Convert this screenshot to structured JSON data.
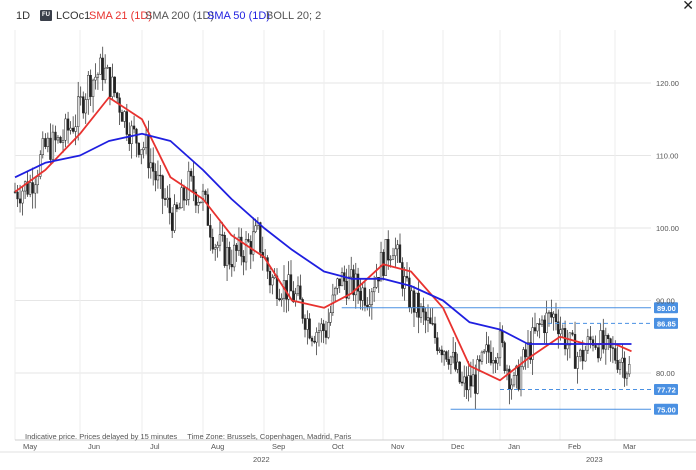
{
  "header": {
    "interval": "1D",
    "badge": "FU",
    "symbol": "LCOc1",
    "indicators": [
      {
        "label": "SMA 21 (1D)",
        "color": "#e8322f"
      },
      {
        "label": "SMA 200 (1D)",
        "color": "#555555"
      },
      {
        "label": "SMA 50 (1D)",
        "color": "#1f1fe0"
      },
      {
        "label": "BOLL 20; 2",
        "color": "#555555"
      }
    ],
    "close_icon": "close-icon"
  },
  "footer": {
    "price_note": "Indicative price. Prices delayed by 15 minutes",
    "timezone": "Time Zone: Brussels, Copenhagen, Madrid, Paris"
  },
  "chart_data": {
    "type": "candlestick",
    "symbol": "LCOc1",
    "ylim": [
      73,
      127
    ],
    "y_ticks": [
      "120.00",
      "110.00",
      "100.00",
      "90.00",
      "80.00"
    ],
    "x_ticks": [
      "May",
      "Jun",
      "Jul",
      "Aug",
      "Sep",
      "Oct",
      "Nov",
      "Dec",
      "Jan",
      "Feb",
      "Mar"
    ],
    "x_years": [
      "2022",
      "2023"
    ],
    "colors": {
      "price": "#222222",
      "sma21": "#e8322f",
      "sma50": "#1f1fe0",
      "levels": "#4a90e2"
    },
    "levels": [
      {
        "value": 89.0,
        "label": "89.00",
        "style": "solid",
        "start": "Oct 10"
      },
      {
        "value": 86.85,
        "label": "86.85",
        "style": "dashed",
        "start": "Jan 25"
      },
      {
        "value": 77.72,
        "label": "77.72",
        "style": "dashed",
        "start": "Jan 01"
      },
      {
        "value": 75.0,
        "label": "75.00",
        "style": "solid",
        "start": "Dec 05"
      }
    ],
    "series": [
      {
        "name": "LCOc1",
        "type": "close",
        "x": [
          "May 01",
          "May 08",
          "May 15",
          "May 22",
          "May 29",
          "Jun 05",
          "Jun 12",
          "Jun 19",
          "Jun 26",
          "Jul 03",
          "Jul 10",
          "Jul 17",
          "Jul 24",
          "Jul 31",
          "Aug 07",
          "Aug 14",
          "Aug 21",
          "Aug 28",
          "Sep 04",
          "Sep 11",
          "Sep 18",
          "Sep 25",
          "Oct 02",
          "Oct 09",
          "Oct 16",
          "Oct 23",
          "Oct 30",
          "Nov 06",
          "Nov 13",
          "Nov 20",
          "Nov 27",
          "Dec 04",
          "Dec 11",
          "Dec 18",
          "Dec 25",
          "Jan 01",
          "Jan 08",
          "Jan 15",
          "Jan 22",
          "Jan 29",
          "Feb 05",
          "Feb 12",
          "Feb 19",
          "Feb 26",
          "Mar 05",
          "Mar 10"
        ],
        "values": [
          105,
          106,
          111,
          112,
          115,
          120,
          122,
          118,
          113,
          111,
          105,
          101,
          106,
          104,
          98,
          96,
          97,
          99,
          93,
          92,
          90,
          86,
          86,
          93,
          92,
          91,
          95,
          98,
          91,
          88,
          85,
          83,
          78,
          79,
          83,
          84,
          78,
          83,
          87,
          88,
          84,
          82,
          85,
          83,
          82,
          80
        ]
      },
      {
        "name": "SMA 21 (1D)",
        "x": [
          "May 01",
          "May 15",
          "Jun 01",
          "Jun 15",
          "Jul 01",
          "Jul 15",
          "Aug 01",
          "Aug 15",
          "Sep 01",
          "Sep 15",
          "Oct 01",
          "Oct 15",
          "Nov 01",
          "Nov 15",
          "Dec 01",
          "Dec 15",
          "Jan 01",
          "Jan 15",
          "Feb 01",
          "Feb 15",
          "Mar 01",
          "Mar 10"
        ],
        "values": [
          105,
          108,
          113,
          118,
          115,
          107,
          104,
          99,
          96,
          90,
          89,
          91,
          95,
          94,
          89,
          81,
          79,
          82,
          85,
          84,
          84,
          83
        ]
      },
      {
        "name": "SMA 50 (1D)",
        "x": [
          "May 01",
          "May 15",
          "Jun 01",
          "Jun 15",
          "Jul 01",
          "Jul 15",
          "Aug 01",
          "Aug 15",
          "Sep 01",
          "Sep 15",
          "Oct 01",
          "Oct 15",
          "Nov 01",
          "Nov 15",
          "Dec 01",
          "Dec 15",
          "Jan 01",
          "Jan 15",
          "Feb 01",
          "Feb 15",
          "Mar 01",
          "Mar 10"
        ],
        "values": [
          107,
          109,
          110,
          112,
          113,
          112,
          108,
          104,
          100,
          97,
          94,
          93,
          93,
          92,
          90,
          87,
          86,
          84,
          84,
          84,
          84,
          84
        ]
      }
    ]
  }
}
